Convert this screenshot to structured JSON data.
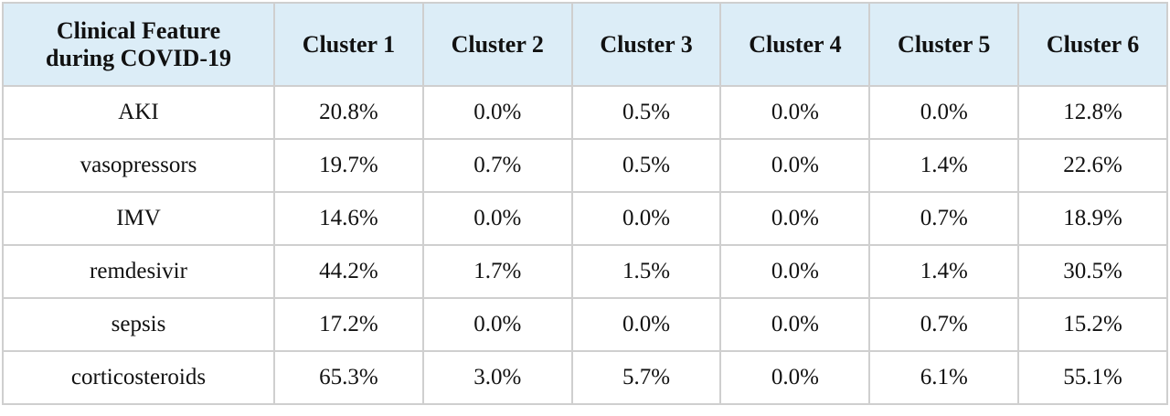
{
  "table": {
    "header": [
      "Clinical Feature during COVID-19",
      "Cluster 1",
      "Cluster 2",
      "Cluster 3",
      "Cluster 4",
      "Cluster 5",
      "Cluster 6"
    ],
    "rows": [
      [
        "AKI",
        "20.8%",
        "0.0%",
        "0.5%",
        "0.0%",
        "0.0%",
        "12.8%"
      ],
      [
        "vasopressors",
        "19.7%",
        "0.7%",
        "0.5%",
        "0.0%",
        "1.4%",
        "22.6%"
      ],
      [
        "IMV",
        "14.6%",
        "0.0%",
        "0.0%",
        "0.0%",
        "0.7%",
        "18.9%"
      ],
      [
        "remdesivir",
        "44.2%",
        "1.7%",
        "1.5%",
        "0.0%",
        "1.4%",
        "30.5%"
      ],
      [
        "sepsis",
        "17.2%",
        "0.0%",
        "0.0%",
        "0.0%",
        "0.7%",
        "15.2%"
      ],
      [
        "corticosteroids",
        "65.3%",
        "3.0%",
        "5.7%",
        "0.0%",
        "6.1%",
        "55.1%"
      ]
    ]
  }
}
